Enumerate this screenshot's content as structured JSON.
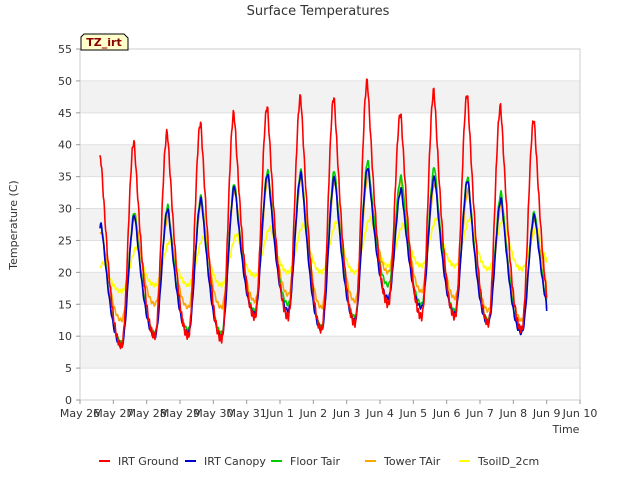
{
  "chart_data": {
    "type": "line",
    "title": "Surface Temperatures",
    "xlabel": "Time",
    "ylabel": "Temperature (C)",
    "badge": "TZ_irt",
    "ylim": [
      0,
      55
    ],
    "yticks": [
      0,
      5,
      10,
      15,
      20,
      25,
      30,
      35,
      40,
      45,
      50,
      55
    ],
    "xlim": [
      0,
      15
    ],
    "xticks": [
      0,
      1,
      2,
      3,
      4,
      5,
      6,
      7,
      8,
      9,
      10,
      11,
      12,
      13,
      14,
      15
    ],
    "xtick_labels": [
      "May 26",
      "May 27",
      "May 28",
      "May 29",
      "May 30",
      "May 31",
      "Jun 1",
      "Jun 2",
      "Jun 3",
      "Jun 4",
      "Jun 5",
      "Jun 6",
      "Jun 7",
      "Jun 8",
      "Jun 9",
      "Jun 10"
    ],
    "grid": "horizontal bands",
    "legend_position": "bottom",
    "series": [
      {
        "name": "IRT Ground",
        "color": "#ff0000",
        "data_start": 0.6,
        "data_end": 14.0,
        "daily_min": [
          8,
          8.5,
          10,
          10,
          9.5,
          13,
          13,
          11,
          12,
          15,
          13,
          13,
          12,
          11,
          11
        ],
        "daily_max": [
          38,
          40.5,
          42,
          43.5,
          45,
          46,
          47.5,
          47.5,
          50,
          45,
          48.5,
          48,
          46,
          44
        ]
      },
      {
        "name": "IRT Canopy",
        "color": "#0000cc",
        "data_start": 0.6,
        "data_end": 14.0,
        "daily_min": [
          7.5,
          8.5,
          10,
          10.5,
          10,
          13.5,
          14,
          11,
          12.5,
          16,
          14.5,
          13.5,
          12,
          10.5,
          12
        ],
        "daily_max": [
          27.5,
          29,
          30,
          31.5,
          33.5,
          35.5,
          35.5,
          35,
          36.5,
          33,
          35,
          34.5,
          31.5,
          29
        ]
      },
      {
        "name": "Floor Tair",
        "color": "#00cc00",
        "data_start": 0.6,
        "data_end": 14.0,
        "daily_min": [
          8,
          9,
          10.5,
          11,
          10.5,
          14,
          15,
          11.5,
          13,
          18,
          15,
          14,
          12.5,
          11,
          12.5
        ],
        "daily_max": [
          27.5,
          29.5,
          30.5,
          32,
          34,
          36,
          36,
          36,
          37.5,
          35,
          36.5,
          35,
          32.5,
          29.5
        ]
      },
      {
        "name": "Tower TAir",
        "color": "#ffa500",
        "data_start": 0.6,
        "data_end": 14.0,
        "daily_min": [
          12.5,
          12.5,
          15,
          14.5,
          14.5,
          15.5,
          16.5,
          14.5,
          15.5,
          20,
          17,
          16,
          14,
          12.5,
          16
        ],
        "daily_max": [
          26.5,
          29,
          29,
          31,
          33,
          35,
          35,
          34.5,
          35.5,
          34.5,
          34,
          33,
          31,
          28.5
        ]
      },
      {
        "name": "TsoilD_2cm",
        "color": "#ffff00",
        "data_start": 0.6,
        "data_end": 14.0,
        "daily_min": [
          17,
          17,
          18,
          18,
          18,
          19.5,
          20,
          20,
          20,
          21,
          21,
          21,
          20.5,
          20.5,
          20
        ],
        "daily_max": [
          21.5,
          24,
          25,
          25.5,
          26,
          27,
          27.5,
          28,
          28.5,
          27.5,
          28.5,
          28.5,
          28.5,
          27
        ]
      }
    ]
  }
}
